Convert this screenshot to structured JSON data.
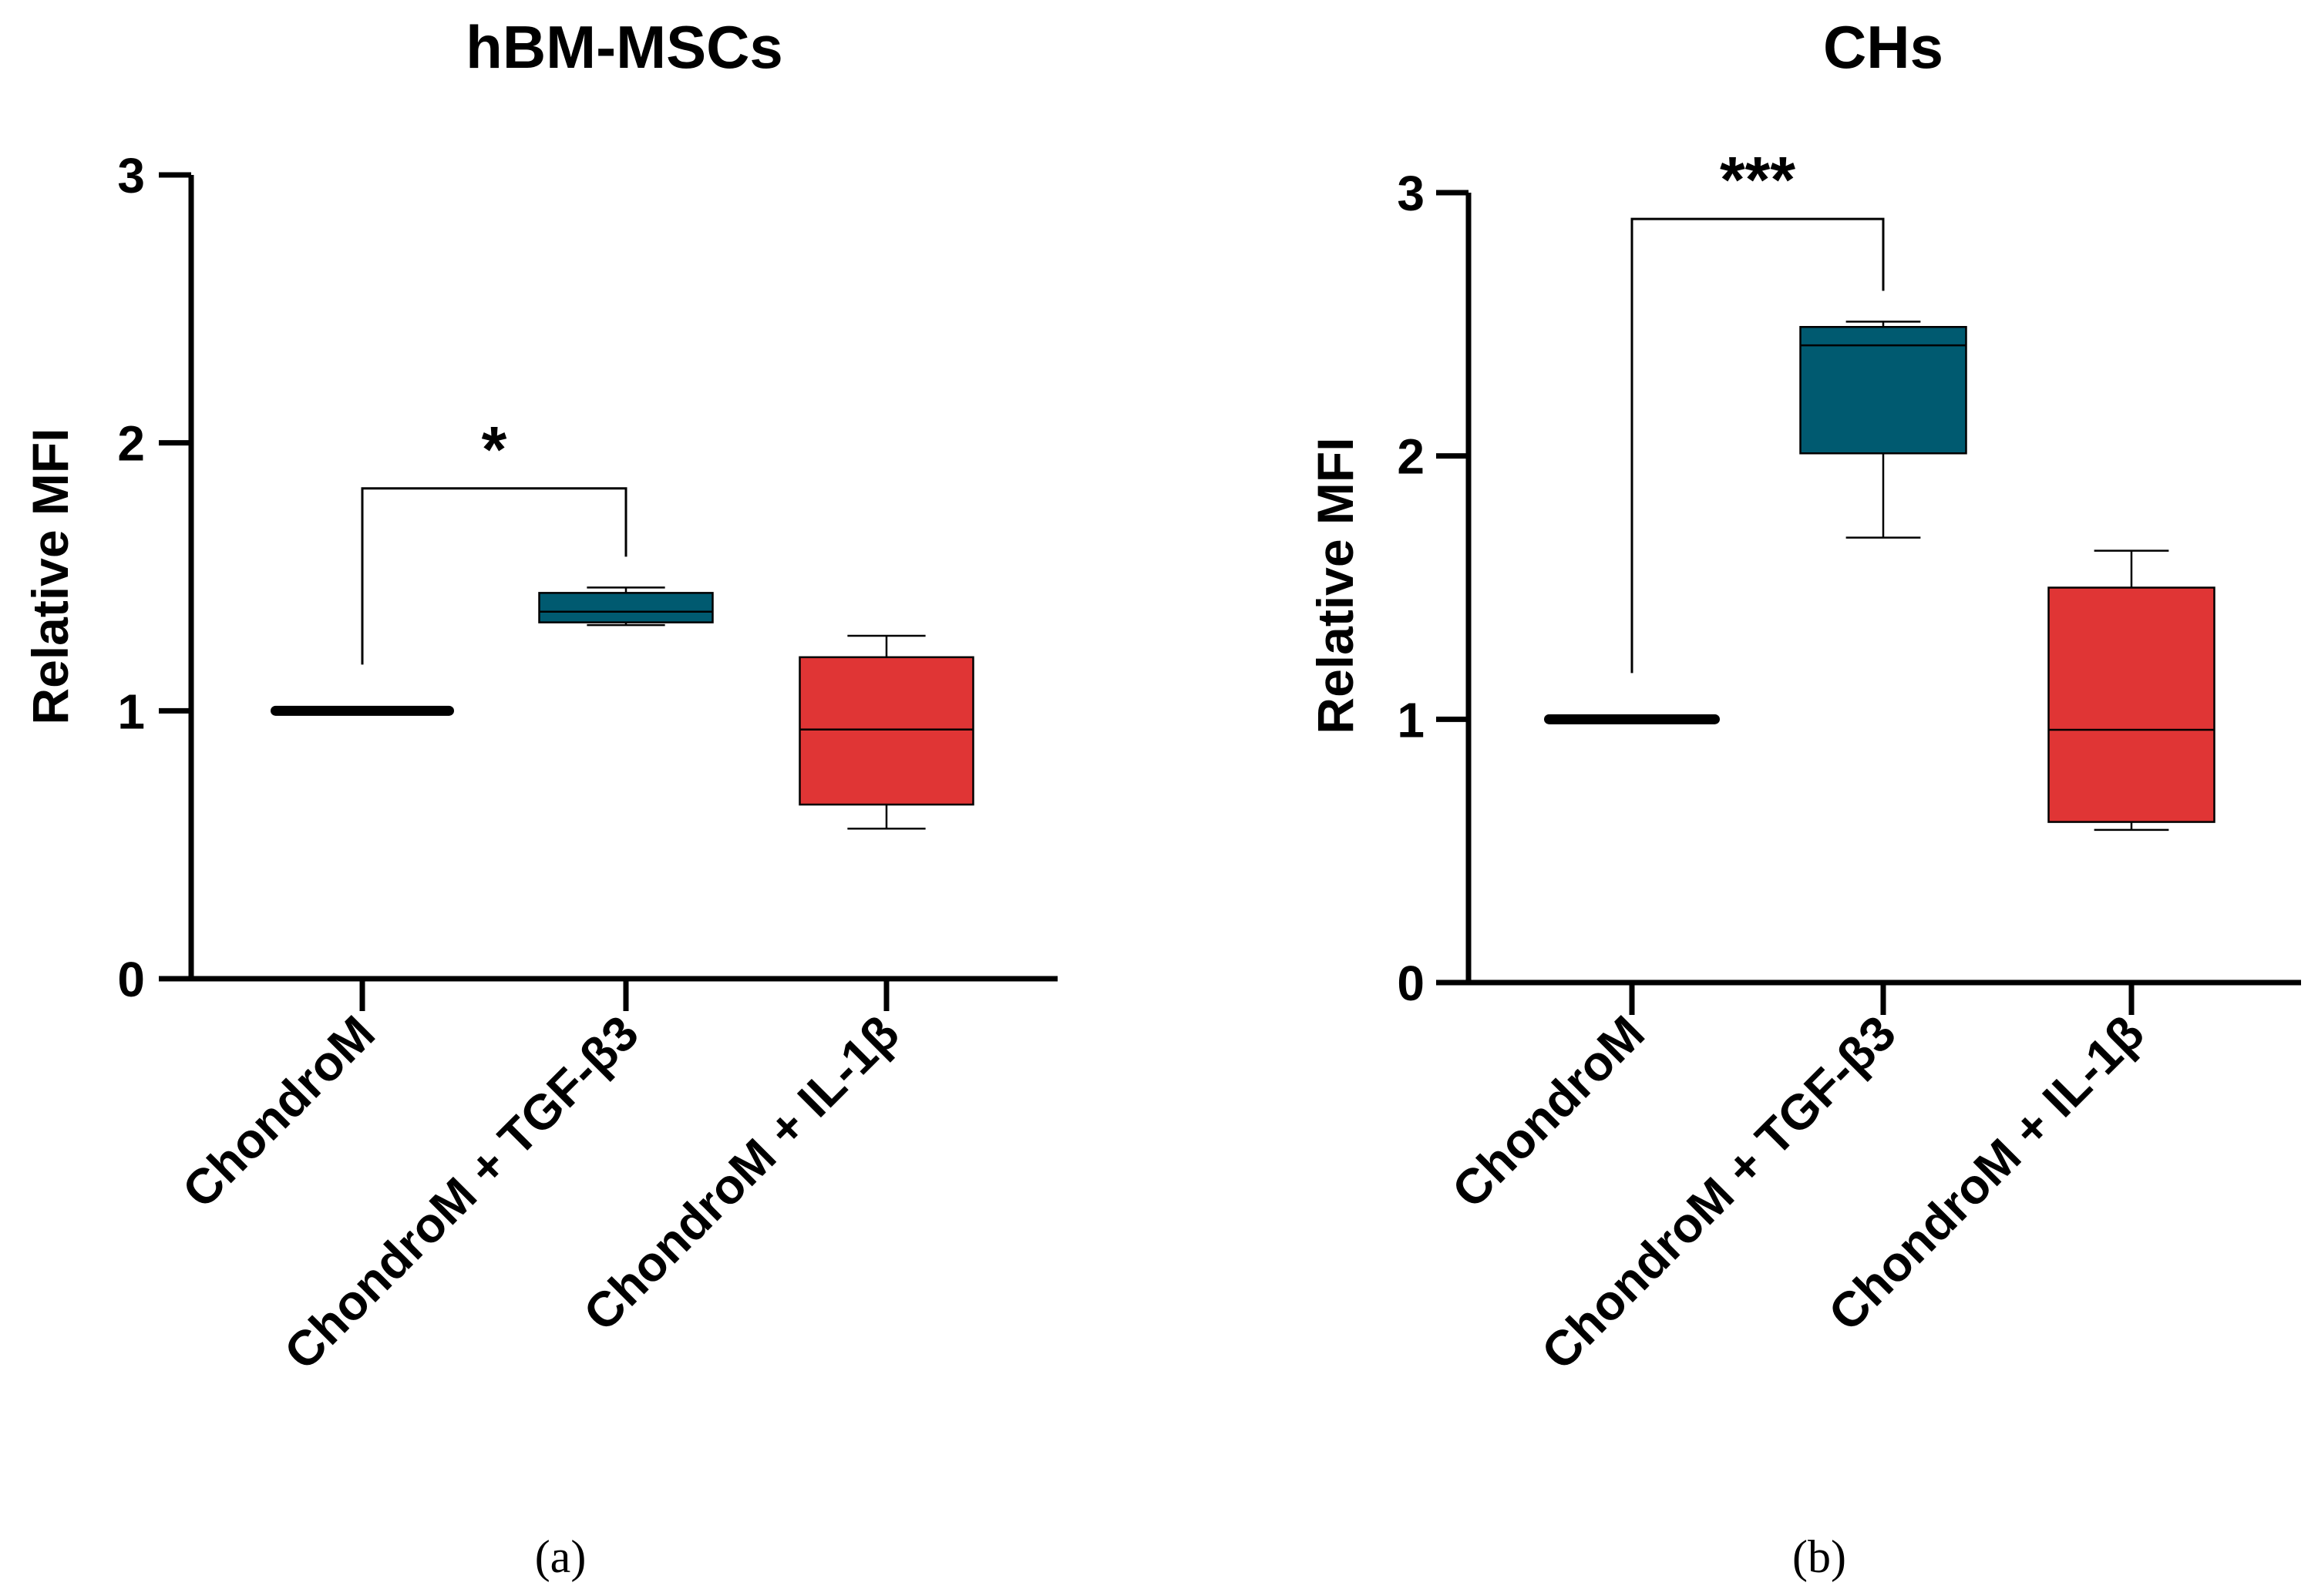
{
  "chart_data": [
    {
      "type": "box",
      "panel_label": "(a)",
      "title": "hBM-MSCs",
      "xlabel": "",
      "ylabel": "Relative MFI",
      "ylim": [
        0,
        3
      ],
      "yticks": [
        "0",
        "1",
        "2",
        "3"
      ],
      "categories": [
        "ChondroM",
        "ChondroM + TGF-β3",
        "ChondroM + IL-1β"
      ],
      "boxes": [
        {
          "min": 1.0,
          "q1": 1.0,
          "median": 1.0,
          "q3": 1.0,
          "max": 1.0,
          "color": "#000000"
        },
        {
          "min": 1.32,
          "q1": 1.33,
          "median": 1.37,
          "q3": 1.44,
          "max": 1.46,
          "color": "#005a70"
        },
        {
          "min": 0.56,
          "q1": 0.65,
          "median": 0.93,
          "q3": 1.2,
          "max": 1.28,
          "color": "#e03535"
        }
      ],
      "significance": [
        {
          "from": 0,
          "to": 1,
          "label": "*",
          "y": 1.83
        }
      ]
    },
    {
      "type": "box",
      "panel_label": "(b)",
      "title": "CHs",
      "xlabel": "",
      "ylabel": "Relative MFI",
      "ylim": [
        0,
        3
      ],
      "yticks": [
        "0",
        "1",
        "2",
        "3"
      ],
      "categories": [
        "ChondroM",
        "ChondroM + TGF-β3",
        "ChondroM + IL-1β"
      ],
      "boxes": [
        {
          "min": 1.0,
          "q1": 1.0,
          "median": 1.0,
          "q3": 1.0,
          "max": 1.0,
          "color": "#000000"
        },
        {
          "min": 1.69,
          "q1": 2.01,
          "median": 2.42,
          "q3": 2.49,
          "max": 2.51,
          "color": "#005a70"
        },
        {
          "min": 0.58,
          "q1": 0.61,
          "median": 0.96,
          "q3": 1.5,
          "max": 1.64,
          "color": "#e03535"
        }
      ],
      "significance": [
        {
          "from": 0,
          "to": 1,
          "label": "***",
          "y": 2.9
        }
      ]
    }
  ]
}
